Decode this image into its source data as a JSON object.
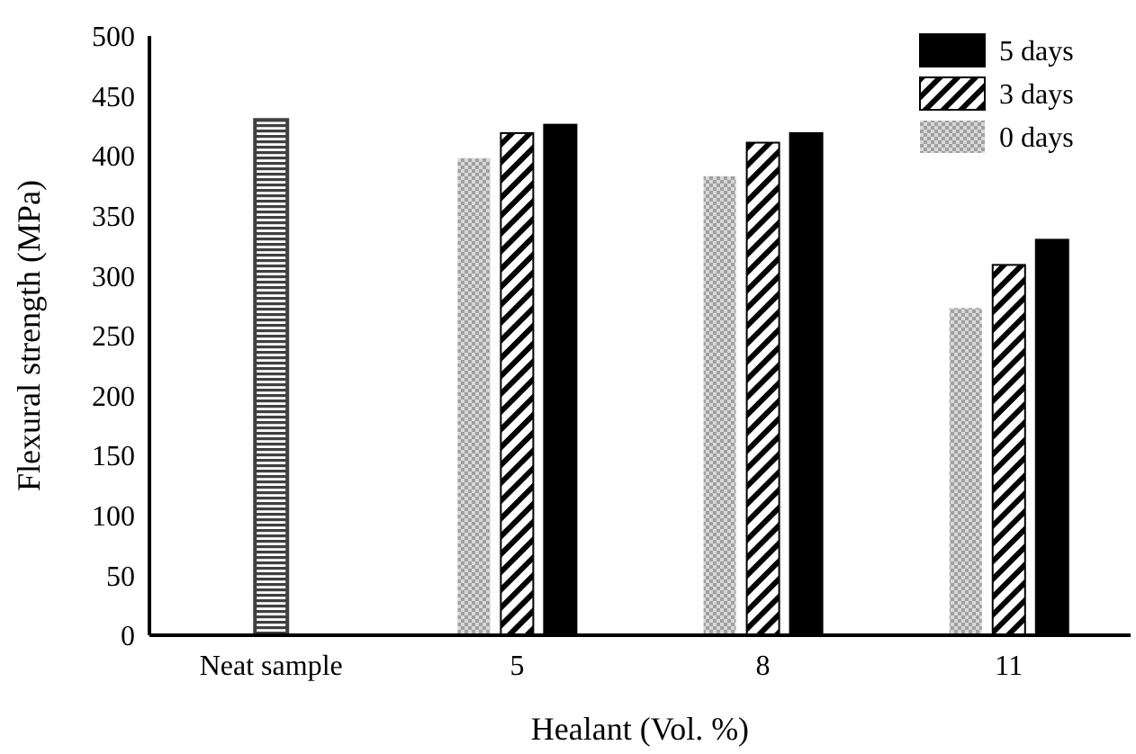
{
  "chart_data": {
    "type": "bar",
    "xlabel": "Healant (Vol. %)",
    "ylabel": "Flexural strength (MPa)",
    "categories": [
      "Neat sample",
      "5",
      "8",
      "11"
    ],
    "series": [
      {
        "color": "#404040",
        "values": [
          430,
          null,
          null,
          null
        ]
      },
      {
        "name": "0 days",
        "color": "#a0a0a0",
        "values": [
          null,
          398,
          383,
          273
        ]
      },
      {
        "name": "3 days",
        "color": "#000000",
        "values": [
          null,
          419,
          411,
          309
        ]
      },
      {
        "name": "5 days",
        "color": "#000000",
        "values": [
          null,
          426,
          419,
          330
        ]
      }
    ],
    "ylim": [
      0,
      500
    ],
    "yticks": [
      0,
      50,
      100,
      150,
      200,
      250,
      300,
      350,
      400,
      450,
      500
    ],
    "grid": false,
    "legend": "top right"
  }
}
